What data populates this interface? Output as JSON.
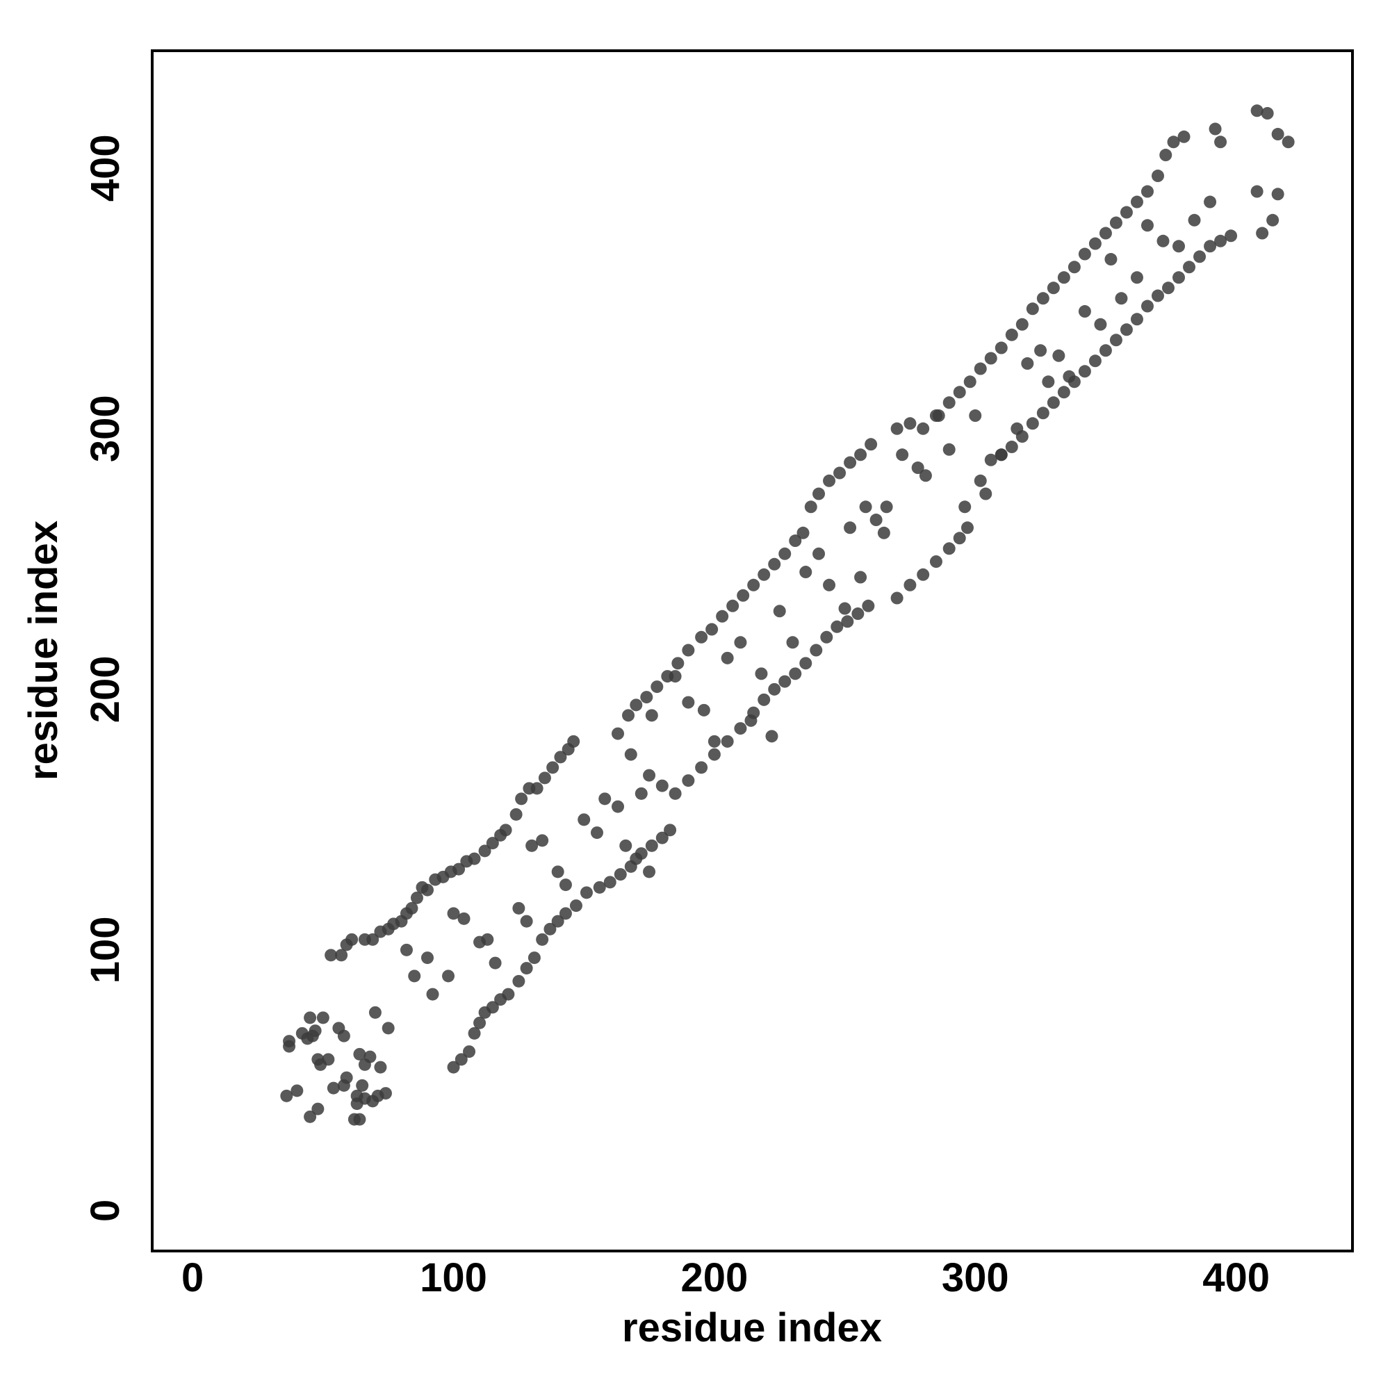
{
  "chart_data": {
    "type": "scatter",
    "x_label": "residue index",
    "y_label": "residue index",
    "xlim": [
      -15.5,
      444.6
    ],
    "ylim": [
      -15.5,
      445
    ],
    "xticks": [
      0,
      100,
      200,
      300,
      400
    ],
    "yticks": [
      0,
      100,
      200,
      300,
      400
    ],
    "grid": false,
    "color": "#3c3c3c",
    "x": [
      36,
      37,
      37,
      40,
      42,
      44,
      45,
      45,
      46,
      47,
      48,
      48,
      49,
      50,
      52,
      54,
      56,
      58,
      58,
      59,
      62,
      63,
      63,
      64,
      65,
      66,
      66,
      68,
      69,
      70,
      71,
      72,
      74,
      75,
      64,
      53,
      57,
      59,
      61,
      66,
      69,
      72,
      75,
      77,
      80,
      82,
      84,
      86,
      88,
      90,
      93,
      96,
      99,
      102,
      105,
      108,
      112,
      115,
      118,
      120,
      124,
      126,
      129,
      132,
      135,
      138,
      141,
      144,
      146,
      100,
      103,
      106,
      108,
      110,
      112,
      115,
      118,
      121,
      125,
      128,
      131,
      134,
      137,
      140,
      143,
      147,
      151,
      156,
      160,
      164,
      168,
      172,
      176,
      180,
      183,
      82,
      85,
      90,
      92,
      98,
      100,
      104,
      110,
      113,
      116,
      125,
      128,
      130,
      134,
      140,
      143,
      150,
      155,
      158,
      163,
      166,
      170,
      175,
      163,
      167,
      170,
      174,
      178,
      182,
      186,
      190,
      195,
      199,
      203,
      207,
      211,
      215,
      219,
      223,
      227,
      231,
      234,
      237,
      240,
      244,
      248,
      252,
      256,
      260,
      175,
      180,
      185,
      190,
      195,
      200,
      205,
      210,
      215,
      219,
      223,
      227,
      231,
      235,
      239,
      243,
      247,
      251,
      255,
      259,
      168,
      172,
      176,
      185,
      190,
      196,
      200,
      205,
      210,
      214,
      218,
      222,
      225,
      230,
      235,
      240,
      244,
      250,
      252,
      256,
      258,
      262,
      265,
      270,
      275,
      280,
      285,
      290,
      294,
      298,
      302,
      306,
      310,
      314,
      318,
      322,
      326,
      330,
      334,
      338,
      342,
      346,
      350,
      354,
      358,
      362,
      366,
      370,
      373,
      376,
      380,
      270,
      275,
      280,
      285,
      290,
      294,
      297,
      302,
      306,
      310,
      314,
      318,
      322,
      326,
      330,
      334,
      338,
      342,
      346,
      350,
      354,
      358,
      362,
      366,
      370,
      374,
      378,
      382,
      386,
      390,
      394,
      398,
      266,
      272,
      278,
      281,
      286,
      290,
      296,
      300,
      304,
      310,
      316,
      320,
      325,
      328,
      332,
      336,
      342,
      348,
      352,
      356,
      362,
      366,
      372,
      378,
      384,
      390,
      392,
      394,
      408,
      412,
      416,
      420,
      410,
      414,
      408,
      416
    ],
    "values": [
      44,
      63,
      65,
      46,
      68,
      66,
      36,
      74,
      67,
      69,
      39,
      58,
      56,
      74,
      58,
      47,
      70,
      48,
      67,
      51,
      35,
      41,
      44,
      35,
      48,
      43,
      56,
      59,
      42,
      76,
      44,
      55,
      45,
      70,
      60,
      98,
      98,
      102,
      104,
      104,
      104,
      107,
      108,
      110,
      111,
      114,
      116,
      120,
      124,
      123,
      127,
      128,
      130,
      131,
      134,
      135,
      138,
      141,
      144,
      146,
      152,
      158,
      162,
      162,
      166,
      170,
      174,
      177,
      180,
      55,
      58,
      61,
      68,
      72,
      76,
      78,
      81,
      83,
      88,
      93,
      97,
      104,
      108,
      111,
      114,
      117,
      122,
      124,
      126,
      129,
      132,
      137,
      140,
      143,
      146,
      100,
      90,
      97,
      83,
      90,
      114,
      112,
      103,
      104,
      95,
      116,
      111,
      140,
      142,
      130,
      125,
      150,
      145,
      158,
      155,
      140,
      135,
      130,
      183,
      190,
      194,
      197,
      201,
      205,
      210,
      215,
      220,
      223,
      228,
      232,
      236,
      240,
      244,
      248,
      252,
      257,
      260,
      270,
      275,
      280,
      283,
      287,
      290,
      294,
      167,
      163,
      160,
      165,
      170,
      175,
      180,
      185,
      191,
      196,
      200,
      203,
      206,
      210,
      215,
      220,
      224,
      226,
      229,
      232,
      175,
      160,
      190,
      205,
      195,
      192,
      180,
      212,
      218,
      188,
      206,
      182,
      230,
      218,
      245,
      252,
      240,
      231,
      262,
      243,
      270,
      265,
      260,
      300,
      302,
      300,
      305,
      310,
      314,
      318,
      323,
      327,
      331,
      336,
      340,
      346,
      350,
      354,
      358,
      362,
      367,
      371,
      375,
      379,
      383,
      387,
      391,
      397,
      405,
      410,
      412,
      235,
      240,
      244,
      249,
      254,
      258,
      262,
      280,
      288,
      290,
      293,
      297,
      302,
      306,
      310,
      314,
      318,
      322,
      326,
      330,
      334,
      338,
      342,
      347,
      351,
      354,
      358,
      362,
      366,
      370,
      372,
      374,
      270,
      290,
      285,
      282,
      305,
      292,
      270,
      305,
      275,
      290,
      300,
      325,
      330,
      318,
      328,
      320,
      345,
      340,
      365,
      350,
      358,
      378,
      372,
      370,
      380,
      387,
      415,
      410,
      422,
      421,
      413,
      410,
      375,
      380,
      391,
      390
    ]
  }
}
